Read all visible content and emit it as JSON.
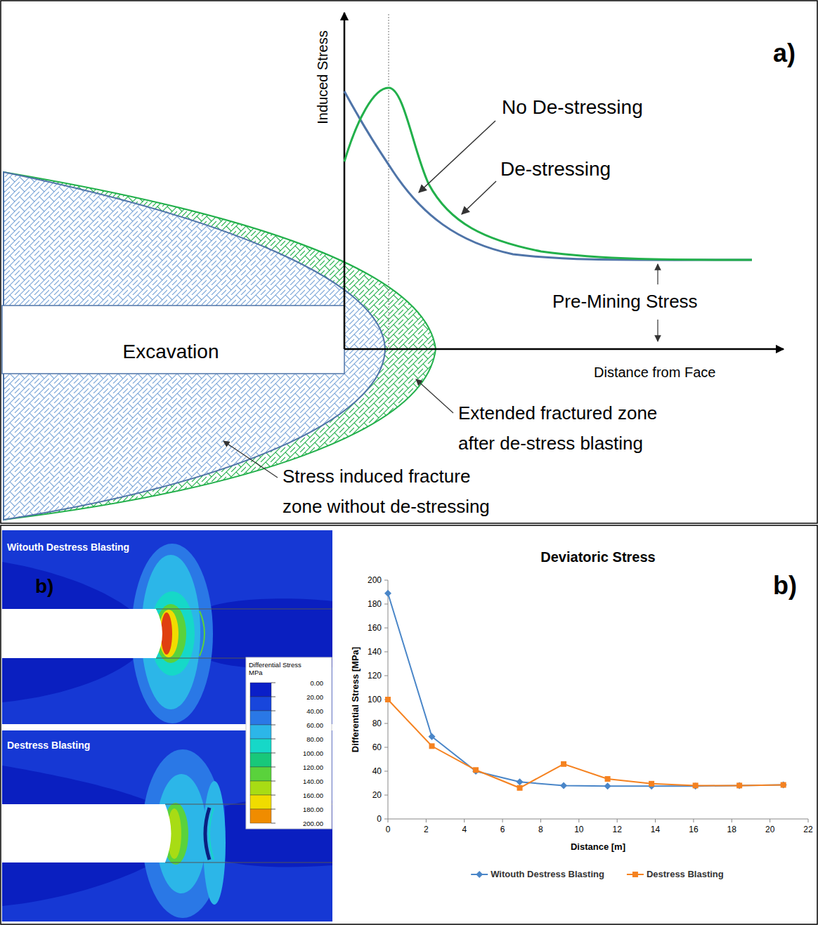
{
  "panel_letters": [
    "a)",
    "b)",
    "b)"
  ],
  "diagram": {
    "y_axis_label": "Induced Stress",
    "x_axis_label": "Distance from Face",
    "excavation_label": "Excavation",
    "baseline_label": "Pre-Mining Stress",
    "curves": [
      {
        "name": "No De-stressing",
        "color": "#4f74a8"
      },
      {
        "name": "De-stressing",
        "color": "#22b04b"
      }
    ],
    "zones": [
      {
        "label_lines": [
          "Extended fractured zone",
          "after de-stress blasting"
        ],
        "color": "#22b04b"
      },
      {
        "label_lines": [
          "Stress induced fracture",
          "zone without de-stressing"
        ],
        "color": "#7aa6d8"
      }
    ]
  },
  "contours": {
    "panels": [
      "Witouth Destress Blasting",
      "Destress Blasting"
    ],
    "colorbar": {
      "title_lines": [
        "Differential Stress",
        "MPa"
      ],
      "ticks": [
        {
          "value": 0,
          "label": "0.00"
        },
        {
          "value": 20,
          "label": "20.00"
        },
        {
          "value": 40,
          "label": "40.00"
        },
        {
          "value": 60,
          "label": "60.00"
        },
        {
          "value": 80,
          "label": "80.00"
        },
        {
          "value": 100,
          "label": "100.00"
        },
        {
          "value": 120,
          "label": "120.00"
        },
        {
          "value": 140,
          "label": "140.00"
        },
        {
          "value": 160,
          "label": "160.00"
        },
        {
          "value": 180,
          "label": "180.00"
        },
        {
          "value": 200,
          "label": "200.00"
        }
      ]
    }
  },
  "chart_data": {
    "type": "line",
    "title": "Deviatoric Stress",
    "x_label": "Distance [m]",
    "y_label": "Differential Stress [MPa]",
    "x": [
      0,
      2.3,
      4.6,
      6.9,
      9.2,
      11.5,
      13.8,
      16.1,
      18.4,
      20.7
    ],
    "series": [
      {
        "name": "Witouth Destress Blasting",
        "color": "#4a86c8",
        "marker": "diamond",
        "values": [
          189,
          69,
          40,
          31,
          28,
          27.5,
          27.5,
          27.5,
          28,
          28.5
        ]
      },
      {
        "name": "Destress Blasting",
        "color": "#f58220",
        "marker": "square",
        "values": [
          100,
          61,
          41,
          26,
          46,
          33.5,
          29.5,
          28,
          28,
          28.5
        ]
      }
    ],
    "xlim": [
      0,
      22
    ],
    "xticks": [
      0,
      2,
      4,
      6,
      8,
      10,
      12,
      14,
      16,
      18,
      20,
      22
    ],
    "ylim": [
      0,
      200
    ],
    "yticks": [
      0,
      20,
      40,
      60,
      80,
      100,
      120,
      140,
      160,
      180,
      200
    ],
    "grid": false,
    "legend": "bottom"
  }
}
